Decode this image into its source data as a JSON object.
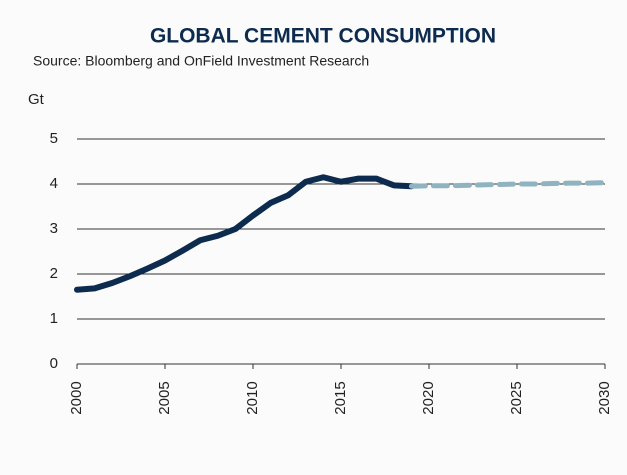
{
  "chart_data": {
    "type": "line",
    "title": "GLOBAL CEMENT CONSUMPTION",
    "subtitle": "Source: Bloomberg and OnField Investment Research",
    "y_label": "Gt",
    "xlim": [
      2000,
      2030
    ],
    "xticks": [
      2000,
      2005,
      2010,
      2015,
      2020,
      2025,
      2030
    ],
    "ylim": [
      0,
      5
    ],
    "yticks": [
      0,
      1,
      2,
      3,
      4,
      5
    ],
    "grid": true,
    "series": [
      {
        "color": "#0d2b4e",
        "line_style": "solid",
        "x": [
          2000,
          2001,
          2002,
          2003,
          2004,
          2005,
          2006,
          2007,
          2008,
          2009,
          2010,
          2011,
          2012,
          2013,
          2014,
          2015,
          2016,
          2017,
          2018,
          2019
        ],
        "values": [
          1.65,
          1.68,
          1.8,
          1.95,
          2.12,
          2.3,
          2.52,
          2.75,
          2.85,
          3.0,
          3.3,
          3.58,
          3.75,
          4.05,
          4.15,
          4.05,
          4.12,
          4.12,
          3.97,
          3.95
        ]
      },
      {
        "color": "#8fb3c0",
        "line_style": "dashed",
        "x": [
          2019,
          2020,
          2021,
          2022,
          2023,
          2024,
          2025,
          2026,
          2027,
          2028,
          2029,
          2030
        ],
        "values": [
          3.95,
          3.96,
          3.96,
          3.97,
          3.98,
          3.99,
          4.0,
          4.0,
          4.01,
          4.02,
          4.02,
          4.03
        ]
      }
    ]
  }
}
